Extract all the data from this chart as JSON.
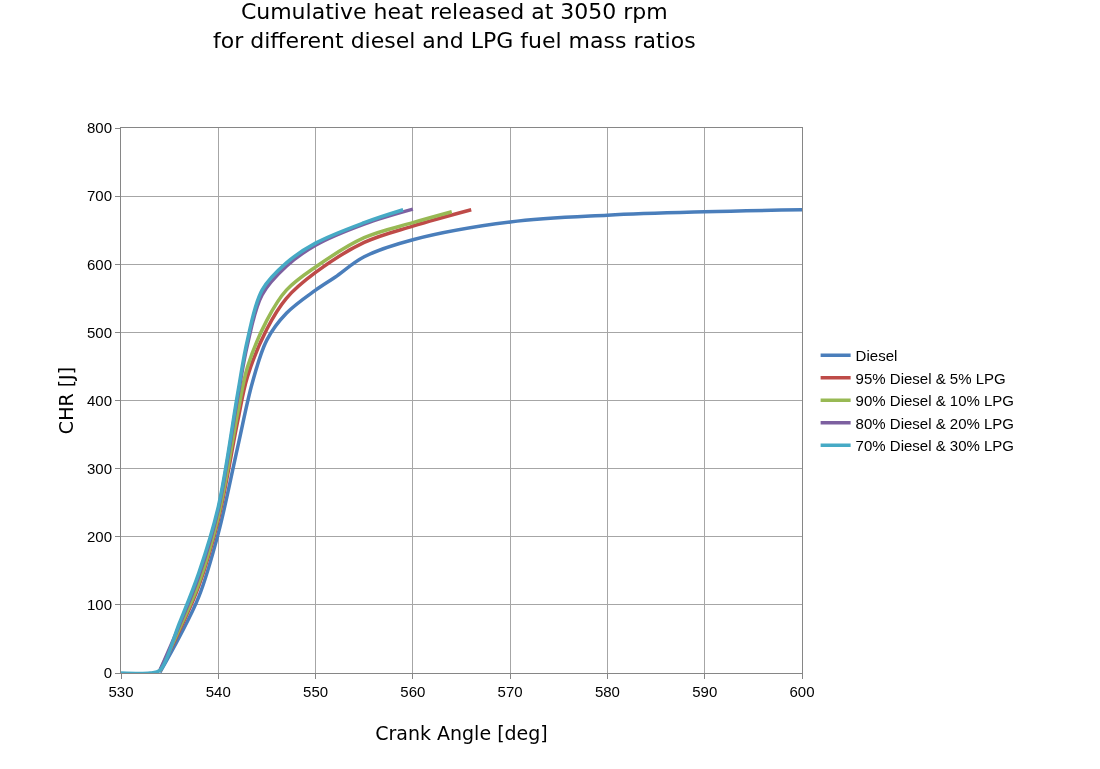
{
  "chart_data": {
    "type": "line",
    "title": "Cumulative heat released at 3050 rpm\nfor different diesel and LPG fuel mass ratios",
    "xlabel": "Crank Angle [deg]",
    "ylabel": "CHR [J]",
    "xlim": [
      530,
      600
    ],
    "xticks": [
      530,
      540,
      550,
      560,
      570,
      580,
      590,
      600
    ],
    "ylim": [
      0,
      800
    ],
    "yticks": [
      0,
      100,
      200,
      300,
      400,
      500,
      600,
      700,
      800
    ],
    "grid": true,
    "legend": "right",
    "marker": "none",
    "line_style": "solid",
    "series": [
      {
        "name": "Diesel",
        "color": "#4a7ebb",
        "x": [
          534,
          536,
          538,
          540,
          542,
          543.5,
          545,
          547,
          550,
          552,
          555,
          560,
          570,
          580,
          590,
          600
        ],
        "values": [
          1,
          53,
          112,
          205,
          332,
          426,
          489,
          528,
          562,
          581,
          611,
          636,
          662,
          672,
          677,
          680
        ]
      },
      {
        "name": "95% Diesel & 5% LPG",
        "color": "#be4b48",
        "x": [
          534,
          536,
          538,
          540,
          542,
          543,
          545,
          547,
          550,
          555,
          560,
          566
        ],
        "values": [
          3,
          62,
          128,
          225,
          370,
          435,
          505,
          550,
          588,
          632,
          656,
          680
        ]
      },
      {
        "name": "90% Diesel & 10% LPG",
        "color": "#98b954",
        "x": [
          534,
          536,
          538,
          540,
          542,
          543,
          545,
          547,
          550,
          555,
          560,
          564
        ],
        "values": [
          3,
          65,
          132,
          230,
          382,
          449,
          518,
          562,
          596,
          639,
          661,
          677
        ]
      },
      {
        "name": "80% Diesel & 20% LPG",
        "color": "#7d60a0",
        "x": [
          534,
          536,
          538,
          540,
          542,
          543,
          544.5,
          547,
          550,
          555,
          560
        ],
        "values": [
          4,
          70,
          142,
          240,
          405,
          482,
          555,
          597,
          628,
          659,
          681
        ]
      },
      {
        "name": "70% Diesel & 30% LPG",
        "color": "#46aac5",
        "x": [
          530,
          533,
          534,
          536,
          538,
          540,
          542,
          543,
          544.5,
          547,
          550,
          555,
          559
        ],
        "values": [
          0,
          0,
          4,
          73,
          147,
          244,
          411,
          489,
          562,
          602,
          631,
          661,
          680
        ]
      }
    ]
  }
}
